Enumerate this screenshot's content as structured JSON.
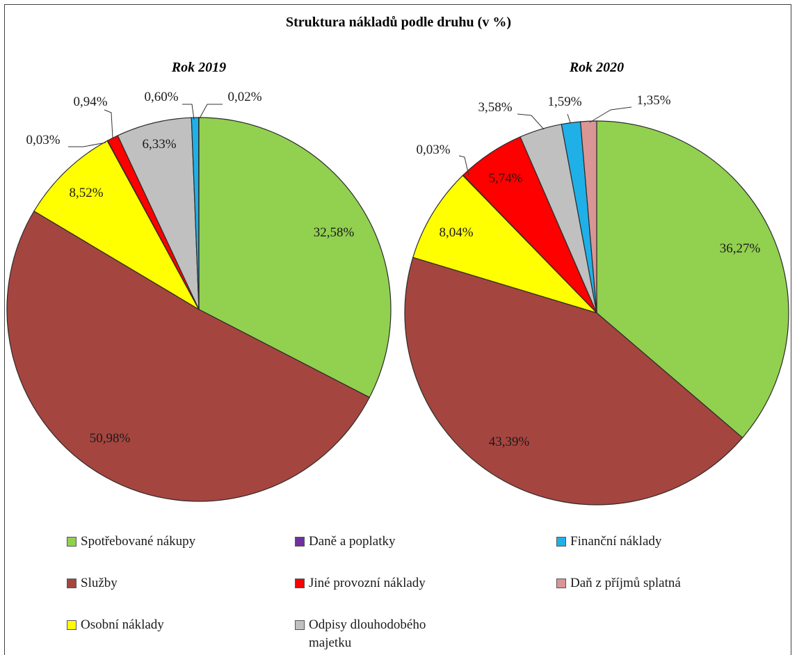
{
  "chart_data": {
    "type": "pie",
    "title": "Struktura nákladů podle druhu (v %)",
    "categories": [
      "Spotřebované nákupy",
      "Služby",
      "Osobní náklady",
      "Daně a poplatky",
      "Jiné provozní náklady",
      "Odpisy dlouhodobého majetku",
      "Finanční náklady",
      "Daň z příjmů splatná"
    ],
    "colors": [
      "#92d050",
      "#a5453f",
      "#ffff00",
      "#7030a0",
      "#ff0000",
      "#c0c0c0",
      "#1fb0e8",
      "#d99694"
    ],
    "series": [
      {
        "name": "Rok 2019",
        "values": [
          32.58,
          50.98,
          8.52,
          0.03,
          0.94,
          6.33,
          0.6,
          0.02
        ],
        "labels": [
          "32,58%",
          "50,98%",
          "8,52%",
          "0,03%",
          "0,94%",
          "6,33%",
          "0,60%",
          "0,02%"
        ]
      },
      {
        "name": "Rok 2020",
        "values": [
          36.27,
          43.39,
          8.04,
          0.03,
          5.74,
          3.58,
          1.59,
          1.35
        ],
        "labels": [
          "36,27%",
          "43,39%",
          "8,04%",
          "0,03%",
          "5,74%",
          "3,58%",
          "1,59%",
          "1,35%"
        ]
      }
    ],
    "legend_position": "bottom"
  }
}
